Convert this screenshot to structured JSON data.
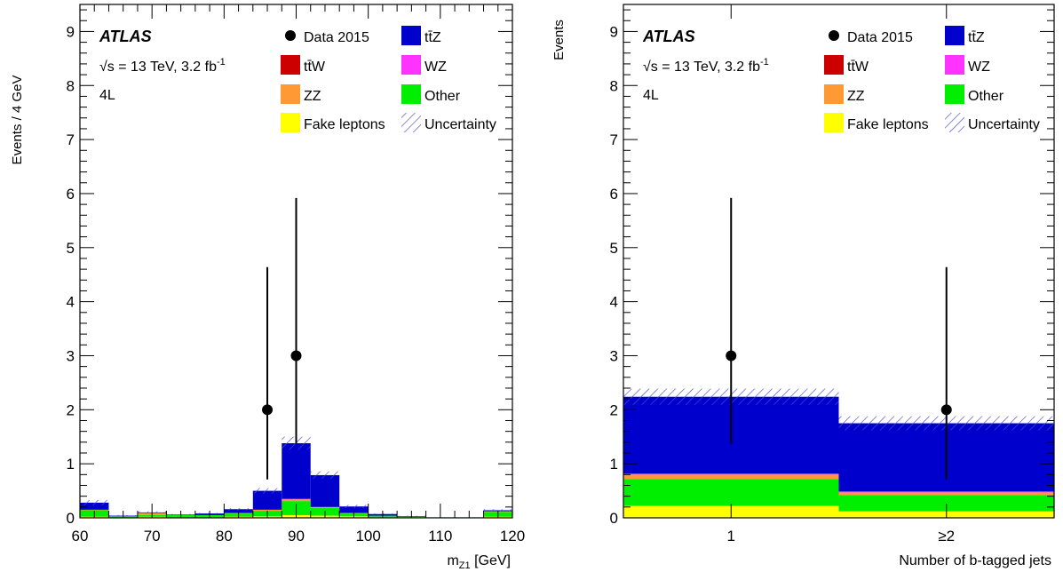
{
  "colors": {
    "ttZ": "#0000cc",
    "ttW": "#cc0000",
    "WZ": "#ff33ff",
    "ZZ": "#ff9933",
    "Other": "#00ee00",
    "Fake": "#ffff00",
    "unc": "#4a4ad8",
    "data": "#000000"
  },
  "legend": {
    "data": "Data 2015",
    "ttZ": "tt̄Z",
    "ttW": "tt̄W",
    "WZ": "WZ",
    "ZZ": "ZZ",
    "Other": "Other",
    "Fake": "Fake leptons",
    "unc": "Uncertainty"
  },
  "labels": {
    "atlas": "ATLAS",
    "energy_pre": "√s = 13 TeV, 3.2 fb",
    "energy_sup": "-1",
    "region": "4L"
  },
  "chart_data": [
    {
      "type": "bar",
      "stacked": true,
      "xlabel_main": "m",
      "xlabel_sub": "Z1",
      "xlabel_unit": " [GeV]",
      "ylabel": "Events / 4 GeV",
      "xlim": [
        60,
        120
      ],
      "ylim": [
        0,
        9.5
      ],
      "xticks": [
        60,
        70,
        80,
        90,
        100,
        110,
        120
      ],
      "yticks": [
        0,
        1,
        2,
        3,
        4,
        5,
        6,
        7,
        8,
        9
      ],
      "bin_edges": [
        60,
        64,
        68,
        72,
        76,
        80,
        84,
        88,
        92,
        96,
        100,
        104,
        108,
        112,
        116,
        120
      ],
      "series": [
        {
          "name": "Fake leptons",
          "key": "Fake",
          "values": [
            0.02,
            0.0,
            0.02,
            0.01,
            0.01,
            0.02,
            0.03,
            0.05,
            0.04,
            0.03,
            0.01,
            0.01,
            0.0,
            0.0,
            0.02
          ]
        },
        {
          "name": "Other",
          "key": "Other",
          "values": [
            0.12,
            0.03,
            0.03,
            0.04,
            0.04,
            0.06,
            0.1,
            0.26,
            0.14,
            0.05,
            0.03,
            0.01,
            0.01,
            0.01,
            0.09
          ]
        },
        {
          "name": "ZZ",
          "key": "ZZ",
          "values": [
            0.01,
            0.0,
            0.04,
            0.0,
            0.0,
            0.01,
            0.02,
            0.03,
            0.02,
            0.01,
            0.0,
            0.0,
            0.0,
            0.0,
            0.01
          ]
        },
        {
          "name": "WZ",
          "key": "WZ",
          "values": [
            0.0,
            0.0,
            0.0,
            0.0,
            0.0,
            0.0,
            0.0,
            0.01,
            0.0,
            0.0,
            0.0,
            0.0,
            0.0,
            0.0,
            0.0
          ]
        },
        {
          "name": "ttW",
          "key": "ttW",
          "values": [
            0.0,
            0.0,
            0.0,
            0.0,
            0.0,
            0.0,
            0.0,
            0.0,
            0.0,
            0.0,
            0.0,
            0.0,
            0.0,
            0.0,
            0.0
          ]
        },
        {
          "name": "ttZ",
          "key": "ttZ",
          "values": [
            0.13,
            0.01,
            0.01,
            0.01,
            0.03,
            0.07,
            0.35,
            1.03,
            0.59,
            0.12,
            0.03,
            0.01,
            0.0,
            0.0,
            0.02
          ]
        }
      ],
      "uncertainty": [
        0.05,
        0.01,
        0.02,
        0.01,
        0.01,
        0.02,
        0.05,
        0.12,
        0.07,
        0.03,
        0.01,
        0.01,
        0.0,
        0.0,
        0.02
      ],
      "data_points": [
        {
          "x": 86,
          "y": 2,
          "err_low": 1.29,
          "err_high": 2.64
        },
        {
          "x": 90,
          "y": 3,
          "err_low": 1.63,
          "err_high": 2.92
        }
      ]
    },
    {
      "type": "bar",
      "stacked": true,
      "xlabel": "Number of b-tagged jets",
      "ylabel": "Events",
      "xlim": [
        0.5,
        2.5
      ],
      "ylim": [
        0,
        9.5
      ],
      "categories": [
        "1",
        "≥2"
      ],
      "yticks": [
        0,
        1,
        2,
        3,
        4,
        5,
        6,
        7,
        8,
        9
      ],
      "series": [
        {
          "name": "Fake leptons",
          "key": "Fake",
          "values": [
            0.22,
            0.12
          ]
        },
        {
          "name": "Other",
          "key": "Other",
          "values": [
            0.5,
            0.3
          ]
        },
        {
          "name": "ZZ",
          "key": "ZZ",
          "values": [
            0.08,
            0.05
          ]
        },
        {
          "name": "WZ",
          "key": "WZ",
          "values": [
            0.01,
            0.01
          ]
        },
        {
          "name": "ttW",
          "key": "ttW",
          "values": [
            0.01,
            0.01
          ]
        },
        {
          "name": "ttZ",
          "key": "ttZ",
          "values": [
            1.42,
            1.26
          ]
        }
      ],
      "uncertainty": [
        0.15,
        0.13
      ],
      "data_points": [
        {
          "x": 1,
          "y": 3,
          "err_low": 1.63,
          "err_high": 2.92
        },
        {
          "x": 2,
          "y": 2,
          "err_low": 1.29,
          "err_high": 2.64
        }
      ]
    }
  ]
}
